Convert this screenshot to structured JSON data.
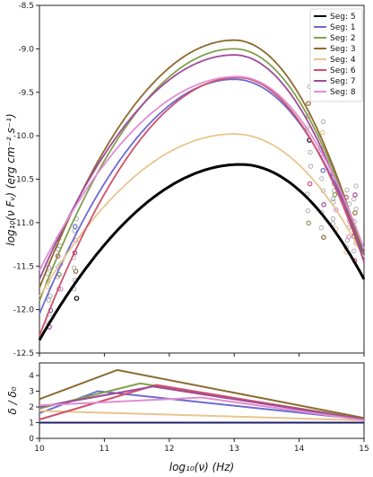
{
  "chart_data": [
    {
      "type": "line",
      "panel": "top",
      "title": "",
      "xlabel": "",
      "ylabel": "log₁₀(ν Fᵥ) (erg cm⁻² s⁻¹)",
      "xlim": [
        10,
        15
      ],
      "ylim": [
        -12.5,
        -8.5
      ],
      "xticks": [
        "10",
        "11",
        "12",
        "13",
        "14",
        "15"
      ],
      "yticks": [
        "-8.5",
        "-9.0",
        "-9.5",
        "-10.0",
        "-10.5",
        "-11.0",
        "-11.5",
        "-12.0",
        "-12.5"
      ],
      "legend": {
        "placement": "top-right"
      },
      "series": [
        {
          "name": "Seg: 5",
          "color": "#000000",
          "peak_x": 13.1,
          "peak_y": -10.33,
          "y_at_10": -12.35,
          "y_at_15": -11.65
        },
        {
          "name": "Seg: 1",
          "color": "#6b6bd0",
          "peak_x": 13.0,
          "peak_y": -9.35,
          "y_at_10": -12.05,
          "y_at_15": -11.35
        },
        {
          "name": "Seg: 2",
          "color": "#82a04d",
          "peak_x": 13.0,
          "peak_y": -9.0,
          "y_at_10": -11.9,
          "y_at_15": -11.4
        },
        {
          "name": "Seg: 3",
          "color": "#8b6b2e",
          "peak_x": 13.0,
          "peak_y": -8.9,
          "y_at_10": -11.75,
          "y_at_15": -11.4
        },
        {
          "name": "Seg: 4",
          "color": "#e8c58f",
          "peak_x": 13.0,
          "peak_y": -9.98,
          "y_at_10": -11.85,
          "y_at_15": -11.4
        },
        {
          "name": "Seg: 6",
          "color": "#d0506a",
          "peak_x": 13.05,
          "peak_y": -9.33,
          "y_at_10": -12.3,
          "y_at_15": -11.45
        },
        {
          "name": "Seg: 7",
          "color": "#a04a9a",
          "peak_x": 13.0,
          "peak_y": -9.07,
          "y_at_10": -11.65,
          "y_at_15": -11.45
        },
        {
          "name": "Seg: 8",
          "color": "#e08ed0",
          "peak_x": 13.05,
          "peak_y": -9.32,
          "y_at_10": -11.55,
          "y_at_15": -11.3
        }
      ],
      "observed_points": {
        "x_groups": [
          10.15,
          10.3,
          10.55,
          14.15,
          14.35,
          14.55,
          14.75,
          14.85
        ],
        "y_range": {
          "10.15": [
            -12.2,
            -11.45
          ],
          "10.3": [
            -11.8,
            -11.1
          ],
          "10.55": [
            -11.85,
            -10.95
          ],
          "14.15": [
            -11.0,
            -9.45
          ],
          "14.35": [
            -11.15,
            -9.85
          ],
          "14.55": [
            -11.05,
            -10.4
          ],
          "14.75": [
            -11.35,
            -10.6
          ],
          "14.85": [
            -11.4,
            -10.6
          ]
        }
      }
    },
    {
      "type": "line",
      "panel": "bottom",
      "title": "",
      "xlabel": "log₁₀(ν) (Hz)",
      "ylabel": "δ / δ₀",
      "xlim": [
        10,
        15
      ],
      "ylim": [
        0,
        4.8
      ],
      "xticks": [
        "10",
        "11",
        "12",
        "13",
        "14",
        "15"
      ],
      "yticks": [
        "0",
        "1",
        "2",
        "3",
        "4"
      ],
      "series": [
        {
          "name": "Seg: 5",
          "color": "#1f1f6e",
          "x": [
            10,
            15
          ],
          "y": [
            1.0,
            1.0
          ]
        },
        {
          "name": "Seg: 1",
          "color": "#6b6bd0",
          "x": [
            10,
            10.9,
            15
          ],
          "y": [
            1.6,
            3.0,
            1.2
          ]
        },
        {
          "name": "Seg: 2",
          "color": "#82a04d",
          "x": [
            10,
            11.55,
            15
          ],
          "y": [
            1.9,
            3.5,
            1.25
          ]
        },
        {
          "name": "Seg: 3",
          "color": "#8b6b2e",
          "x": [
            10,
            11.2,
            15
          ],
          "y": [
            2.5,
            4.35,
            1.3
          ]
        },
        {
          "name": "Seg: 4",
          "color": "#e8c58f",
          "x": [
            10,
            15
          ],
          "y": [
            1.75,
            1.15
          ]
        },
        {
          "name": "Seg: 6",
          "color": "#d0506a",
          "x": [
            10,
            11.8,
            15
          ],
          "y": [
            1.2,
            3.4,
            1.2
          ]
        },
        {
          "name": "Seg: 7",
          "color": "#a04a9a",
          "x": [
            10,
            11.75,
            15
          ],
          "y": [
            2.0,
            3.3,
            1.2
          ]
        },
        {
          "name": "Seg: 8",
          "color": "#e08ed0",
          "x": [
            10,
            12.5,
            15
          ],
          "y": [
            2.1,
            2.6,
            1.15
          ]
        }
      ]
    }
  ]
}
